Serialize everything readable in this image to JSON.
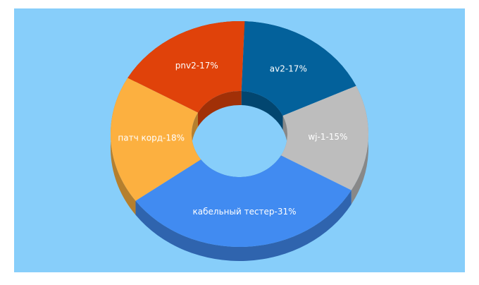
{
  "chart_data": {
    "type": "donut3d",
    "values": [
      17,
      15,
      31,
      18,
      17
    ],
    "value_labels": [
      "av2-17%",
      "wj-1-15%",
      "кабельный тестер-31%",
      "патч корд-18%",
      "pnv2-17%"
    ],
    "colors": [
      "#03619b",
      "#bdbdbd",
      "#418bf1",
      "#fcb040",
      "#e0420a"
    ]
  }
}
